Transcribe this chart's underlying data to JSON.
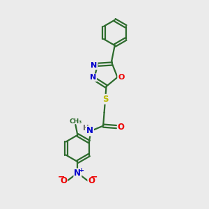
{
  "background_color": "#ebebeb",
  "bond_color": "#2d6b2d",
  "atom_colors": {
    "N": "#0000cc",
    "O": "#ee0000",
    "S": "#bbbb00",
    "H": "#666666",
    "C": "#2d6b2d"
  },
  "figsize": [
    3.0,
    3.0
  ],
  "dpi": 100
}
